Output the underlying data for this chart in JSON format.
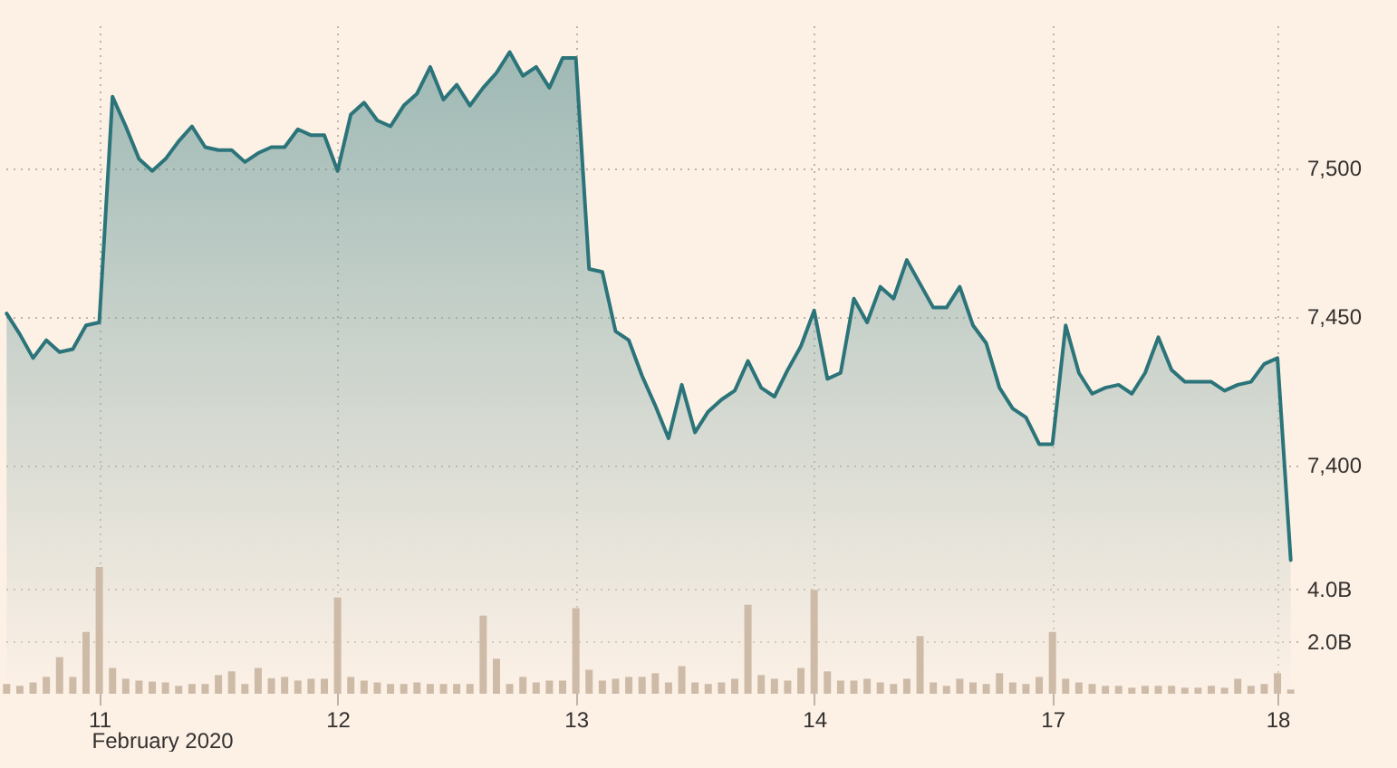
{
  "chart_data": {
    "type": "area",
    "categories": [
      null,
      null,
      null,
      null,
      null,
      null,
      null,
      "11",
      null,
      null,
      null,
      null,
      null,
      null,
      null,
      null,
      null,
      null,
      null,
      null,
      null,
      null,
      null,
      null,
      null,
      "12",
      null,
      null,
      null,
      null,
      null,
      null,
      null,
      null,
      null,
      null,
      null,
      null,
      null,
      null,
      null,
      null,
      null,
      "13",
      null,
      null,
      null,
      null,
      null,
      null,
      null,
      null,
      null,
      null,
      null,
      null,
      null,
      null,
      null,
      null,
      null,
      "14",
      null,
      null,
      null,
      null,
      null,
      null,
      null,
      null,
      null,
      null,
      null,
      null,
      null,
      null,
      null,
      null,
      null,
      "17",
      null,
      null,
      null,
      null,
      null,
      null,
      null,
      null,
      null,
      null,
      null,
      null,
      null,
      null,
      null,
      null,
      "18",
      null
    ],
    "series": [
      {
        "color": "#2b7479",
        "values": [
          7451,
          7444,
          7436,
          7442,
          7438,
          7439,
          7447,
          7448,
          7524,
          7514,
          7503,
          7499,
          7503,
          7509,
          7514,
          7507,
          7506,
          7506,
          7502,
          7505,
          7507,
          7507,
          7513,
          7511,
          7511,
          7499,
          7518,
          7522,
          7516,
          7514,
          7521,
          7525,
          7534,
          7523,
          7528,
          7521,
          7527,
          7532,
          7539,
          7531,
          7534,
          7527,
          7537,
          7537,
          7466,
          7465,
          7445,
          7442,
          7430,
          7420,
          7409,
          7427,
          7411,
          7418,
          7422,
          7425,
          7435,
          7426,
          7423,
          7432,
          7440,
          7452,
          7429,
          7431,
          7456,
          7448,
          7460,
          7456,
          7469,
          7461,
          7453,
          7453,
          7460,
          7447,
          7441,
          7426,
          7419,
          7416,
          7407,
          7407,
          7447,
          7431,
          7424,
          7426,
          7427,
          7424,
          7431,
          7443,
          7432,
          7428,
          7428,
          7428,
          7425,
          7427,
          7428,
          7434,
          7436,
          7368
        ]
      },
      {
        "type": "bar",
        "axis": "y2",
        "color": "#cdbba7",
        "values": [
          0.37,
          0.3,
          0.43,
          0.64,
          1.39,
          0.64,
          2.35,
          4.82,
          0.98,
          0.57,
          0.5,
          0.46,
          0.43,
          0.3,
          0.37,
          0.37,
          0.71,
          0.85,
          0.37,
          0.98,
          0.59,
          0.64,
          0.5,
          0.57,
          0.57,
          3.66,
          0.64,
          0.5,
          0.43,
          0.37,
          0.37,
          0.43,
          0.37,
          0.37,
          0.37,
          0.37,
          2.97,
          1.33,
          0.37,
          0.64,
          0.43,
          0.5,
          0.5,
          3.25,
          0.91,
          0.5,
          0.57,
          0.64,
          0.64,
          0.78,
          0.43,
          1.05,
          0.43,
          0.37,
          0.43,
          0.57,
          3.38,
          0.71,
          0.57,
          0.5,
          0.98,
          3.95,
          0.85,
          0.5,
          0.5,
          0.57,
          0.43,
          0.37,
          0.57,
          2.19,
          0.43,
          0.3,
          0.57,
          0.43,
          0.37,
          0.78,
          0.43,
          0.37,
          0.64,
          2.35,
          0.57,
          0.43,
          0.37,
          0.3,
          0.3,
          0.23,
          0.3,
          0.3,
          0.3,
          0.23,
          0.23,
          0.3,
          0.23,
          0.57,
          0.3,
          0.37,
          0.78,
          0.16
        ]
      }
    ],
    "xlabel": "February 2020",
    "ylim": [
      7323,
      7548
    ],
    "yticks": [
      {
        "value": 7400,
        "label": "7,400"
      },
      {
        "value": 7450,
        "label": "7,450"
      },
      {
        "value": 7500,
        "label": "7,500"
      }
    ],
    "y2lim": [
      0,
      25.4
    ],
    "y2ticks": [
      {
        "value": 2,
        "label": "2.0B"
      },
      {
        "value": 4,
        "label": "4.0B"
      }
    ],
    "grid": true
  }
}
